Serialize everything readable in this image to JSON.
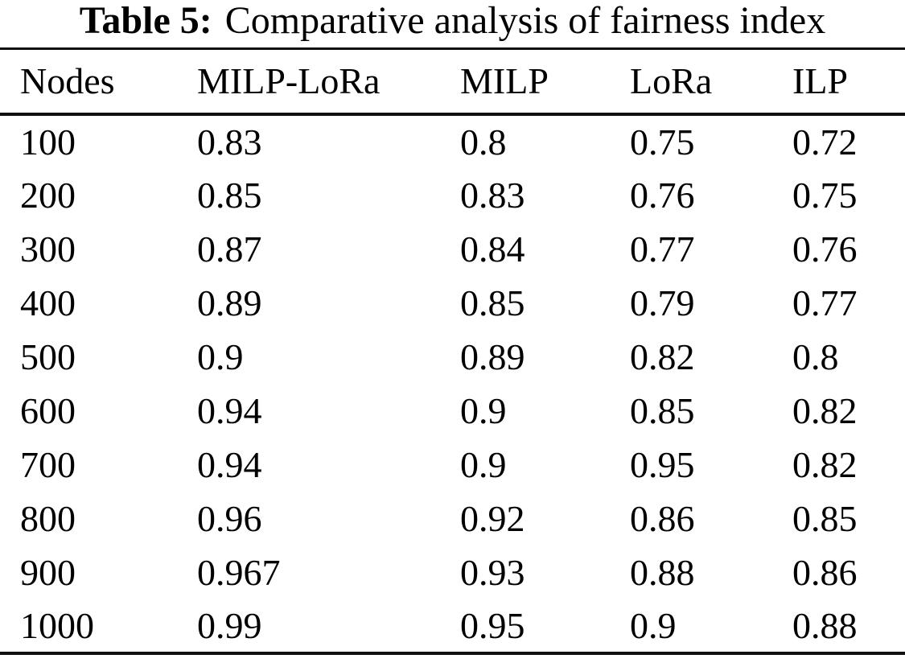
{
  "title": {
    "label": "Table 5:",
    "caption": "Comparative analysis of fairness index"
  },
  "table": {
    "columns": [
      "Nodes",
      "MILP-LoRa",
      "MILP",
      "LoRa",
      "ILP"
    ],
    "rows": [
      [
        "100",
        "0.83",
        "0.8",
        "0.75",
        "0.72"
      ],
      [
        "200",
        "0.85",
        "0.83",
        "0.76",
        "0.75"
      ],
      [
        "300",
        "0.87",
        "0.84",
        "0.77",
        "0.76"
      ],
      [
        "400",
        "0.89",
        "0.85",
        "0.79",
        "0.77"
      ],
      [
        "500",
        "0.9",
        "0.89",
        "0.82",
        "0.8"
      ],
      [
        "600",
        "0.94",
        "0.9",
        "0.85",
        "0.82"
      ],
      [
        "700",
        "0.94",
        "0.9",
        "0.95",
        "0.82"
      ],
      [
        "800",
        "0.96",
        "0.92",
        "0.86",
        "0.85"
      ],
      [
        "900",
        "0.967",
        "0.93",
        "0.88",
        "0.86"
      ],
      [
        "1000",
        "0.99",
        "0.95",
        "0.9",
        "0.88"
      ]
    ]
  },
  "colors": {
    "text": "#000000",
    "rule": "#101010",
    "background": "#ffffff"
  }
}
